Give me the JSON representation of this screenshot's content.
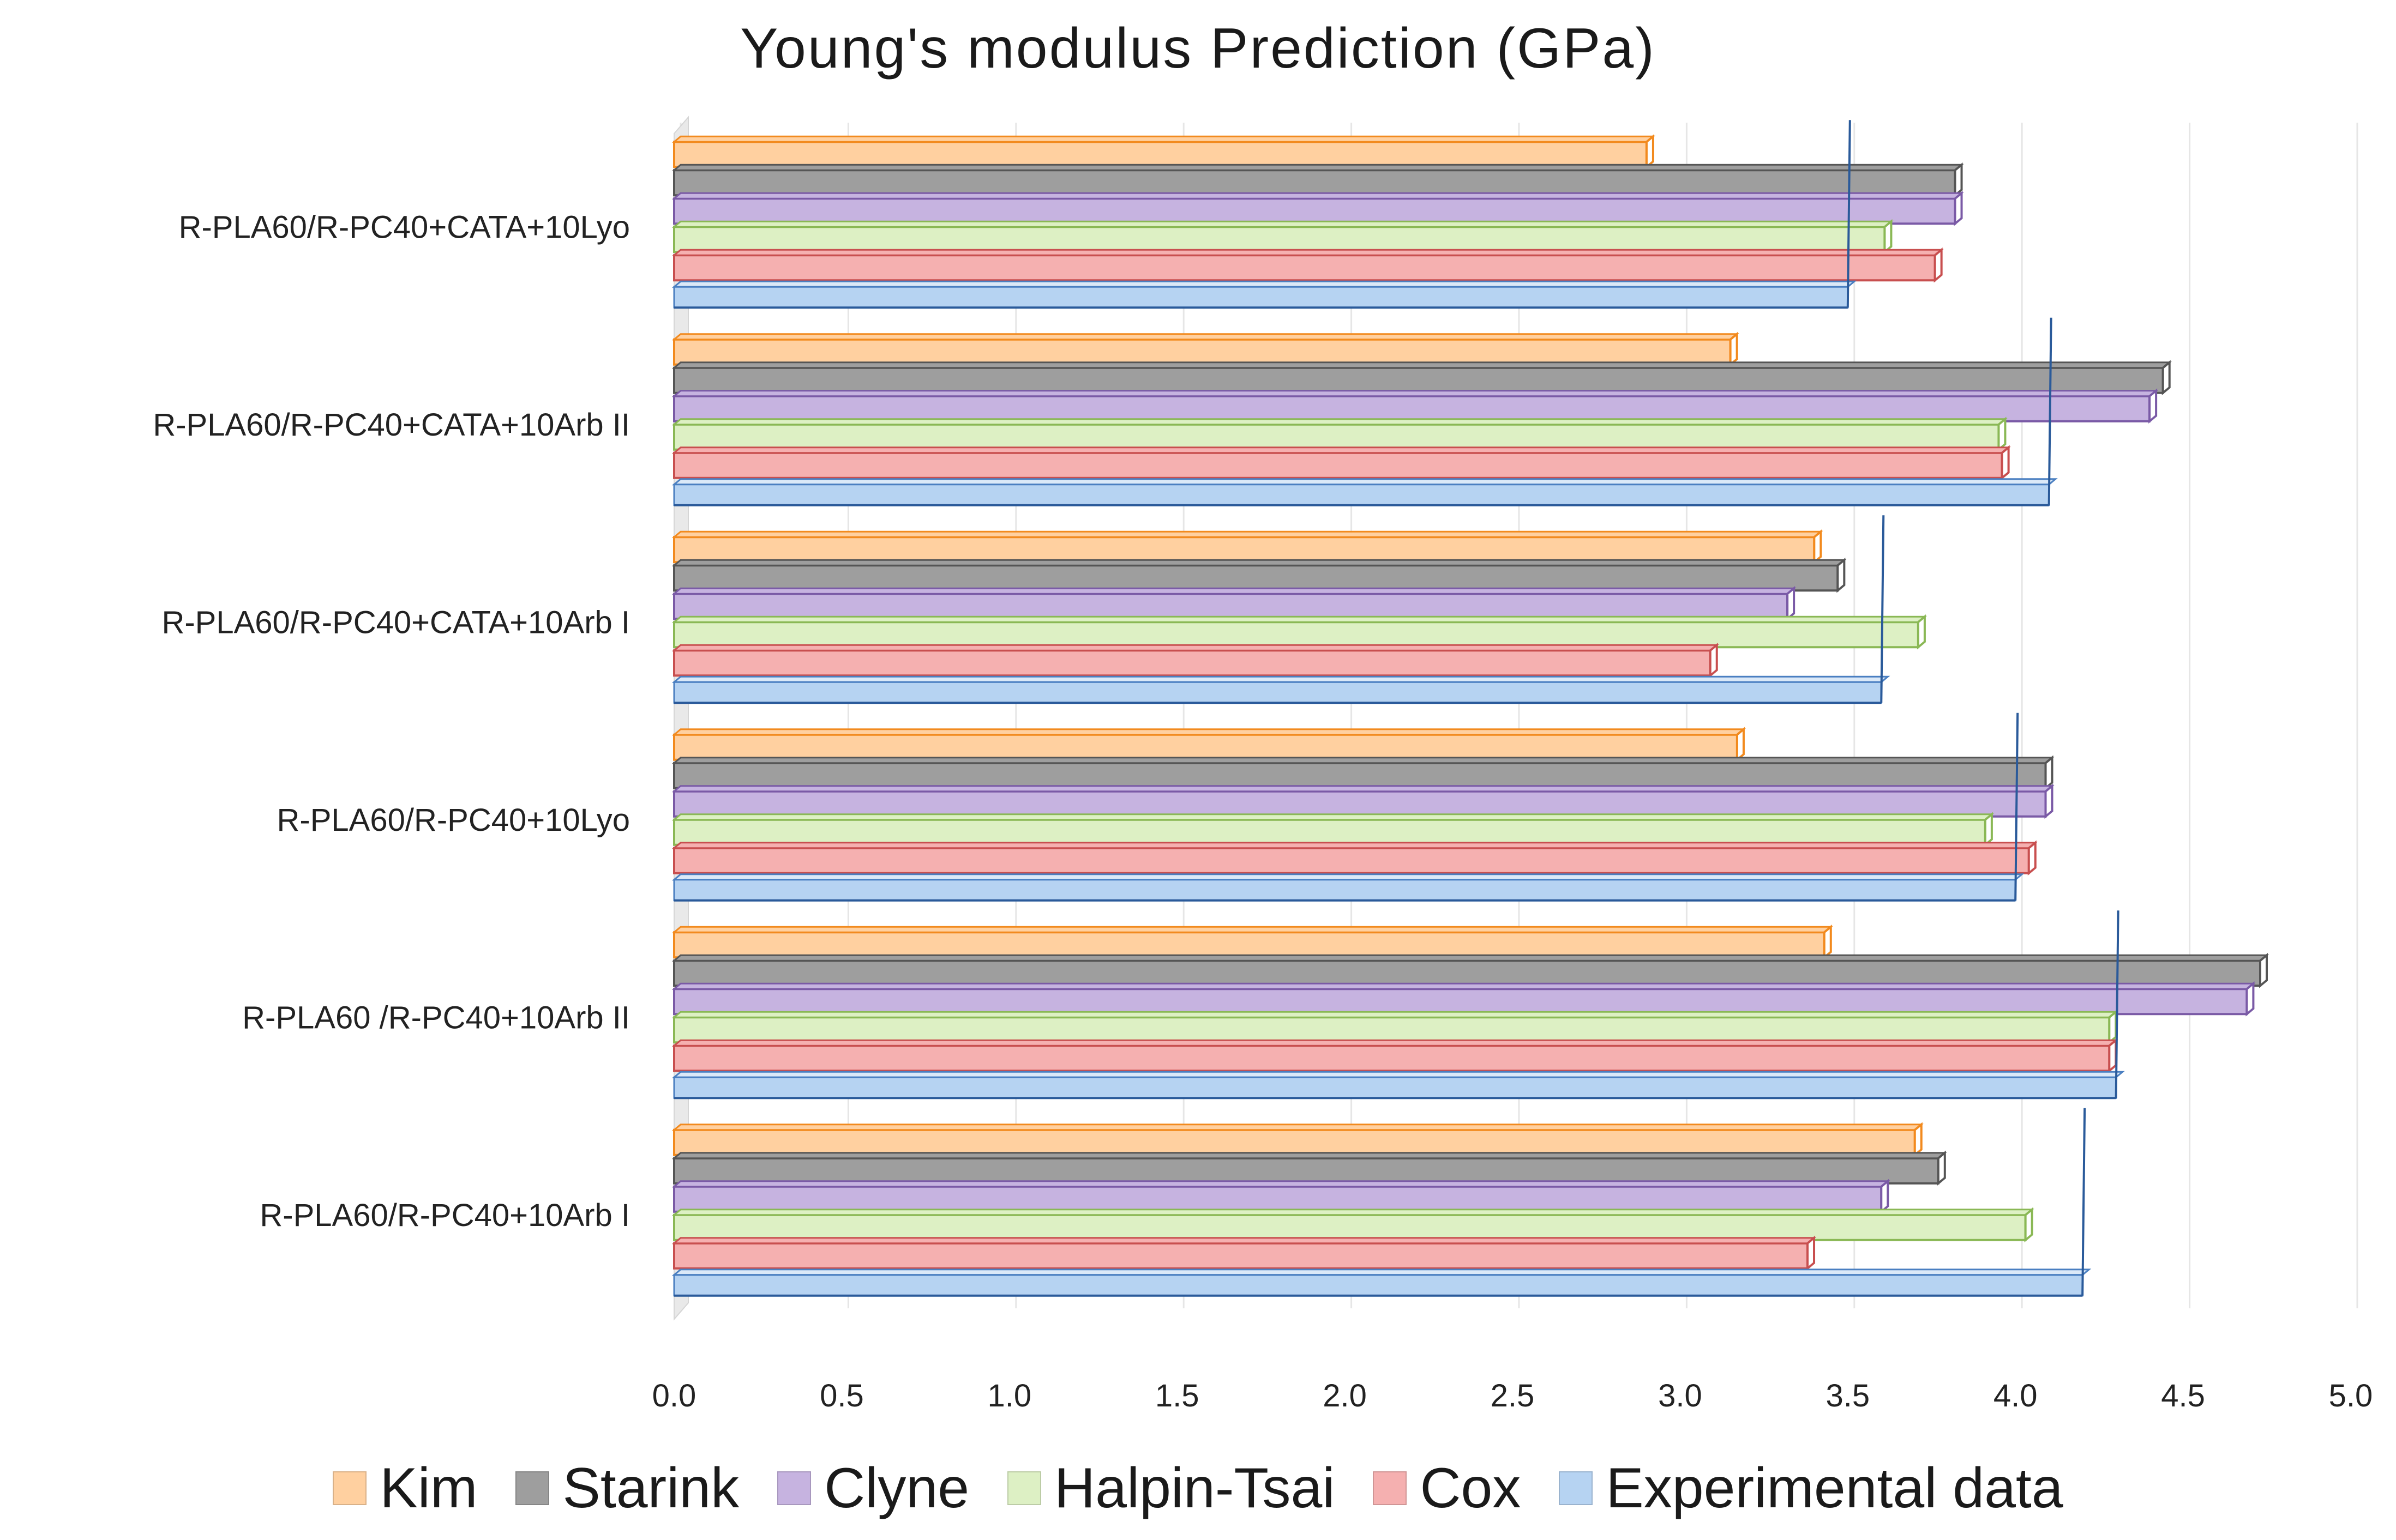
{
  "chart_data": {
    "type": "bar",
    "orientation": "horizontal",
    "title": "Young's modulus Prediction (GPa)",
    "xlabel": "",
    "ylabel": "",
    "xlim": [
      0,
      5
    ],
    "x_ticks": [
      "0.0",
      "0.5",
      "1.0",
      "1.5",
      "2.0",
      "2.5",
      "3.0",
      "3.5",
      "4.0",
      "4.5",
      "5.0"
    ],
    "grid": true,
    "legend_position": "bottom",
    "categories": [
      "R-PLA60/R-PC40+CATA+10Lyo",
      "R-PLA60/R-PC40+CATA+10Arb II",
      "R-PLA60/R-PC40+CATA+10Arb I",
      "R-PLA60/R-PC40+10Lyo",
      "R-PLA60 /R-PC40+10Arb II",
      "R-PLA60/R-PC40+10Arb I"
    ],
    "series": [
      {
        "name": "Kim",
        "color": "#ffd0a0",
        "edge": "#f28a1e",
        "values": [
          2.9,
          3.15,
          3.4,
          3.17,
          3.43,
          3.7
        ]
      },
      {
        "name": "Starink",
        "color": "#9e9e9e",
        "edge": "#555555",
        "values": [
          3.82,
          4.44,
          3.47,
          4.09,
          4.73,
          3.77
        ]
      },
      {
        "name": "Clyne",
        "color": "#c6b3e0",
        "edge": "#7a5aa6",
        "values": [
          3.82,
          4.4,
          3.32,
          4.09,
          4.69,
          3.6
        ]
      },
      {
        "name": "Halpin-Tsai",
        "color": "#ddf0c4",
        "edge": "#8ab855",
        "values": [
          3.61,
          3.95,
          3.71,
          3.91,
          4.28,
          4.03
        ]
      },
      {
        "name": "Cox",
        "color": "#f5b0b0",
        "edge": "#c84f4f",
        "values": [
          3.76,
          3.96,
          3.09,
          4.04,
          4.28,
          3.38
        ]
      },
      {
        "name": "Experimental data",
        "color": "#b6d3f2",
        "edge": "#4a7fc1",
        "values": [
          3.5,
          4.1,
          3.6,
          4.0,
          4.3,
          4.2
        ]
      }
    ]
  }
}
